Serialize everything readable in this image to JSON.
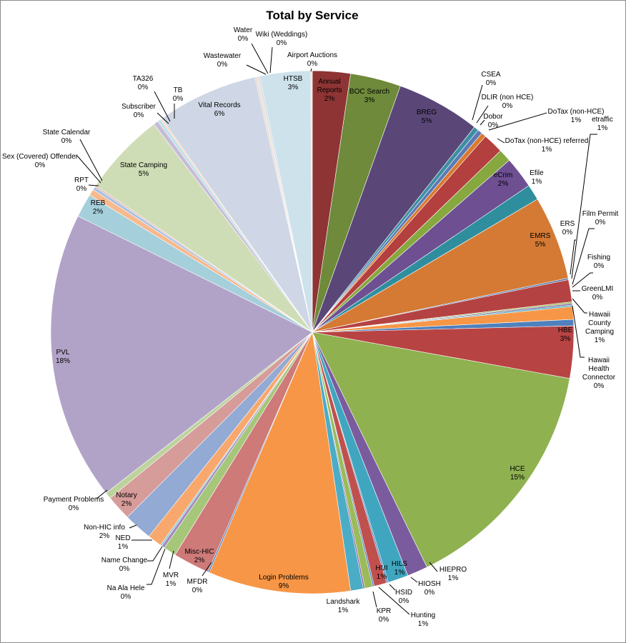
{
  "chart_data": {
    "type": "pie",
    "title": "Total by Service",
    "start_angle_deg": 0,
    "direction": "clockwise",
    "legend": "none",
    "slices": [
      {
        "label": "Annual Reports",
        "pct_label": "2%",
        "value": 2.4,
        "color": "#8e3434"
      },
      {
        "label": "BOC Search",
        "pct_label": "3%",
        "value": 3.2,
        "color": "#6e8a3a"
      },
      {
        "label": "BREG",
        "pct_label": "5%",
        "value": 5.3,
        "color": "#5a4778"
      },
      {
        "label": "CSEA",
        "pct_label": "0%",
        "value": 0.3,
        "color": "#3c8fa2"
      },
      {
        "label": "DLIR (non HCE)",
        "pct_label": "0%",
        "value": 0.3,
        "color": "#5b79b5"
      },
      {
        "label": "Dobor",
        "pct_label": "0%",
        "value": 0.3,
        "color": "#d97a30"
      },
      {
        "label": "DoTax (non-HCE)",
        "pct_label": "1%",
        "value": 1.3,
        "color": "#b33f3f"
      },
      {
        "label": "DoTax (non-HCE) referred",
        "pct_label": "1%",
        "value": 0.8,
        "color": "#86a83f"
      },
      {
        "label": "eCrim",
        "pct_label": "2%",
        "value": 2.0,
        "color": "#6d4f92"
      },
      {
        "label": "Efile",
        "pct_label": "1%",
        "value": 1.0,
        "color": "#2f8e9e"
      },
      {
        "label": "EMRS",
        "pct_label": "5%",
        "value": 5.3,
        "color": "#d47a34"
      },
      {
        "label": "ERS",
        "pct_label": "0%",
        "value": 0.1,
        "color": "#4a6ea8"
      },
      {
        "label": "etraffic",
        "pct_label": "1%",
        "value": 1.4,
        "color": "#b54242"
      },
      {
        "label": "Film Permit",
        "pct_label": "0%",
        "value": 0.1,
        "color": "#9bbb59"
      },
      {
        "label": "Fishing",
        "pct_label": "0%",
        "value": 0.1,
        "color": "#8064a2"
      },
      {
        "label": "GreenLMI",
        "pct_label": "0%",
        "value": 0.1,
        "color": "#4bacc6"
      },
      {
        "label": "Hawaii County Camping",
        "pct_label": "1%",
        "value": 0.8,
        "color": "#f79646"
      },
      {
        "label": "Hawaii Health Connector",
        "pct_label": "0%",
        "value": 0.4,
        "color": "#4f81bd"
      },
      {
        "label": "HBE",
        "pct_label": "3%",
        "value": 3.3,
        "color": "#b84343"
      },
      {
        "label": "HCE",
        "pct_label": "15%",
        "value": 15.3,
        "color": "#8fb150"
      },
      {
        "label": "HIEPRO",
        "pct_label": "1%",
        "value": 1.3,
        "color": "#7a5c9e"
      },
      {
        "label": "HILS",
        "pct_label": "1%",
        "value": 1.3,
        "color": "#40a6bf"
      },
      {
        "label": "HIOSH",
        "pct_label": "0%",
        "value": 0.1,
        "color": "#4f81bd"
      },
      {
        "label": "HUI",
        "pct_label": "1%",
        "value": 0.8,
        "color": "#c0504d"
      },
      {
        "label": "HSID",
        "pct_label": "0%",
        "value": 0.1,
        "color": "#4f81bd"
      },
      {
        "label": "Hunting",
        "pct_label": "1%",
        "value": 0.5,
        "color": "#9bbb59"
      },
      {
        "label": "KPR",
        "pct_label": "0%",
        "value": 0.1,
        "color": "#8064a2"
      },
      {
        "label": "Landshark",
        "pct_label": "1%",
        "value": 0.8,
        "color": "#4bacc6"
      },
      {
        "label": "Login Problems",
        "pct_label": "9%",
        "value": 9.0,
        "color": "#f79646"
      },
      {
        "label": "MFDR",
        "pct_label": "0%",
        "value": 0.1,
        "color": "#4f81bd"
      },
      {
        "label": "Misc-HIC",
        "pct_label": "2%",
        "value": 2.3,
        "color": "#cd7a78"
      },
      {
        "label": "MVR",
        "pct_label": "1%",
        "value": 0.8,
        "color": "#a6c77a"
      },
      {
        "label": "Na Ala Hele",
        "pct_label": "0%",
        "value": 0.2,
        "color": "#a28cbd"
      },
      {
        "label": "Name Change",
        "pct_label": "0%",
        "value": 0.1,
        "color": "#7fc3d4"
      },
      {
        "label": "NED",
        "pct_label": "1%",
        "value": 0.9,
        "color": "#f8a86c"
      },
      {
        "label": "Non-HIC info",
        "pct_label": "2%",
        "value": 1.8,
        "color": "#92aad4"
      },
      {
        "label": "Notary",
        "pct_label": "2%",
        "value": 1.6,
        "color": "#d69c9a"
      },
      {
        "label": "Payment Problems",
        "pct_label": "0%",
        "value": 0.4,
        "color": "#bcd39c"
      },
      {
        "label": "PVL",
        "pct_label": "18%",
        "value": 18.3,
        "color": "#b1a3c8"
      },
      {
        "label": "REB",
        "pct_label": "2%",
        "value": 1.5,
        "color": "#a4cfdb"
      },
      {
        "label": "RPT",
        "pct_label": "0%",
        "value": 0.4,
        "color": "#f7b98d"
      },
      {
        "label": "Sex (Covered) Offender",
        "pct_label": "0%",
        "value": 0.2,
        "color": "#a9c1e2"
      },
      {
        "label": "State Calendar",
        "pct_label": "0%",
        "value": 0.1,
        "color": "#e1b2b1"
      },
      {
        "label": "State Camping",
        "pct_label": "5%",
        "value": 5.3,
        "color": "#cfddb6"
      },
      {
        "label": "Subscriber",
        "pct_label": "0%",
        "value": 0.3,
        "color": "#c6bcd8"
      },
      {
        "label": "TA326",
        "pct_label": "0%",
        "value": 0.2,
        "color": "#bfe0e8"
      },
      {
        "label": "TB",
        "pct_label": "0%",
        "value": 0.1,
        "color": "#fbd1b4"
      },
      {
        "label": "Vital Records",
        "pct_label": "6%",
        "value": 6.4,
        "color": "#cfd7e6"
      },
      {
        "label": "Wastewater",
        "pct_label": "0%",
        "value": 0.1,
        "color": "#e7cccb"
      },
      {
        "label": "Water",
        "pct_label": "0%",
        "value": 0.1,
        "color": "#dbe6cc"
      },
      {
        "label": "Wiki (Weddings)",
        "pct_label": "0%",
        "value": 0.1,
        "color": "#d6d0e1"
      },
      {
        "label": "HTSB",
        "pct_label": "3%",
        "value": 3.2,
        "color": "#cde2ea"
      },
      {
        "label": "Airport Auctions",
        "pct_label": "0%",
        "value": 0.1,
        "color": "#fde1cc"
      }
    ]
  }
}
